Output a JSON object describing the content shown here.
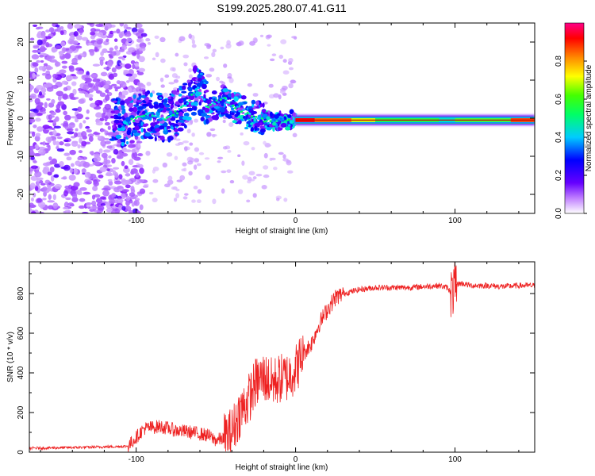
{
  "title": "S199.2025.280.07.41.G11",
  "colors": {
    "snr_line": "#ee2222",
    "zero_line": "#cc0000",
    "frame": "#000000"
  },
  "chart_data": [
    {
      "type": "heatmap",
      "xlabel": "Height of straight line (km)",
      "ylabel": "Frequency (Hz)",
      "xlim": [
        -167,
        150
      ],
      "ylim": [
        -25,
        25
      ],
      "xticks": [
        -100,
        0,
        100
      ],
      "yticks": [
        -20,
        -10,
        0,
        10,
        20
      ],
      "colorbar": {
        "label": "Normalized spectral amplitude",
        "range": [
          0,
          1
        ],
        "ticks": [
          0.0,
          0.2,
          0.4,
          0.6,
          0.8
        ],
        "tick_labels": [
          "0.0",
          "0.2",
          "0.4",
          "0.6",
          "0.8"
        ],
        "colormap": [
          "#ffffff",
          "#8800ff",
          "#0000ff",
          "#00ffff",
          "#00ff00",
          "#ffff00",
          "#ff8800",
          "#ff0000",
          "#ff0088"
        ]
      },
      "ridge": {
        "description_points_x": [
          -110,
          -95,
          -80,
          -70,
          -62,
          -55,
          -45,
          -35,
          -25,
          -15,
          -5,
          0,
          50,
          100,
          150
        ],
        "description_points_y": [
          -2,
          1,
          0,
          3,
          8,
          3,
          5,
          2,
          0.5,
          -1,
          -0.5,
          -0.5,
          -0.5,
          -0.5,
          -0.5
        ]
      }
    },
    {
      "type": "line",
      "xlabel": "Height of straight line (km)",
      "ylabel": "SNR (10 * v/v)",
      "xlim": [
        -167,
        150
      ],
      "ylim": [
        0,
        960
      ],
      "xticks": [
        -100,
        0,
        100
      ],
      "yticks": [
        0,
        200,
        400,
        600,
        800
      ],
      "series": [
        {
          "name": "SNR",
          "x": [
            -167,
            -130,
            -105,
            -95,
            -85,
            -75,
            -65,
            -55,
            -50,
            -45,
            -40,
            -35,
            -30,
            -25,
            -20,
            -15,
            -10,
            -5,
            0,
            5,
            10,
            15,
            20,
            25,
            30,
            40,
            50,
            60,
            70,
            80,
            90,
            95,
            98,
            100,
            102,
            105,
            110,
            120,
            130,
            140,
            150
          ],
          "y": [
            20,
            25,
            30,
            120,
            130,
            110,
            100,
            85,
            60,
            70,
            100,
            200,
            260,
            350,
            380,
            350,
            370,
            380,
            420,
            500,
            550,
            650,
            720,
            780,
            800,
            820,
            830,
            830,
            830,
            835,
            840,
            830,
            800,
            830,
            850,
            850,
            840,
            840,
            835,
            840,
            840
          ]
        }
      ]
    }
  ]
}
